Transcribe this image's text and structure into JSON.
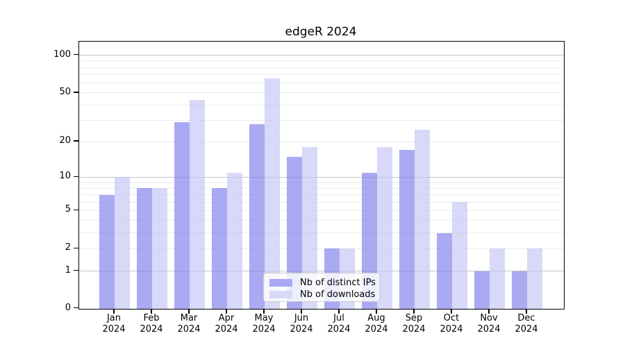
{
  "figure": {
    "title": "edgeR 2024"
  },
  "chart_data": {
    "type": "bar",
    "title": "edgeR 2024",
    "x_categories": [
      "Jan 2024",
      "Feb 2024",
      "Mar 2024",
      "Apr 2024",
      "May 2024",
      "Jun 2024",
      "Jul 2024",
      "Aug 2024",
      "Sep 2024",
      "Oct 2024",
      "Nov 2024",
      "Dec 2024"
    ],
    "months": [
      {
        "month": "Jan",
        "year": "2024"
      },
      {
        "month": "Feb",
        "year": "2024"
      },
      {
        "month": "Mar",
        "year": "2024"
      },
      {
        "month": "Apr",
        "year": "2024"
      },
      {
        "month": "May",
        "year": "2024"
      },
      {
        "month": "Jun",
        "year": "2024"
      },
      {
        "month": "Jul",
        "year": "2024"
      },
      {
        "month": "Aug",
        "year": "2024"
      },
      {
        "month": "Sep",
        "year": "2024"
      },
      {
        "month": "Oct",
        "year": "2024"
      },
      {
        "month": "Nov",
        "year": "2024"
      },
      {
        "month": "Dec",
        "year": "2024"
      }
    ],
    "series": [
      {
        "name": "Nb of distinct IPs",
        "swatch_color": "#a9a9f3",
        "bar_color": "rgba(124,124,237,0.65)",
        "values": [
          7,
          8,
          29,
          8,
          28,
          15,
          2,
          11,
          17,
          3,
          1,
          1
        ]
      },
      {
        "name": "Nb of downloads",
        "swatch_color": "#d8d8f8",
        "bar_color": "rgba(195,195,245,0.65)",
        "values": [
          10,
          8,
          44,
          11,
          65,
          18,
          2,
          18,
          25,
          6,
          2,
          2
        ]
      }
    ],
    "y_axis": {
      "scale": "log1p",
      "ylim": [
        0,
        129
      ],
      "ticks": [
        {
          "label": "100",
          "value": 100
        },
        {
          "label": "50",
          "value": 50
        },
        {
          "label": "20",
          "value": 20
        },
        {
          "label": "10",
          "value": 10
        },
        {
          "label": "5",
          "value": 5
        },
        {
          "label": "2",
          "value": 2
        },
        {
          "label": "1",
          "value": 1
        },
        {
          "label": "0",
          "value": 0
        }
      ],
      "major_gridlines": [
        1,
        10,
        100
      ],
      "minor_gridlines": [
        2,
        3,
        4,
        5,
        6,
        7,
        8,
        9,
        20,
        30,
        40,
        50,
        60,
        70,
        80,
        90
      ]
    },
    "grid": true,
    "legend": {
      "position": "lower center",
      "items": [
        {
          "label": "Nb of distinct IPs",
          "swatch": "#a9a9f3"
        },
        {
          "label": "Nb of downloads",
          "swatch": "#d8d8f8"
        }
      ]
    }
  },
  "colors": {
    "grid_major": "#c4c4c4",
    "grid_minor": "#ececec",
    "axis": "#000000",
    "legend_border": "#cccccc",
    "legend_background": "rgba(255,255,255,0.8)",
    "text": "#000000"
  }
}
